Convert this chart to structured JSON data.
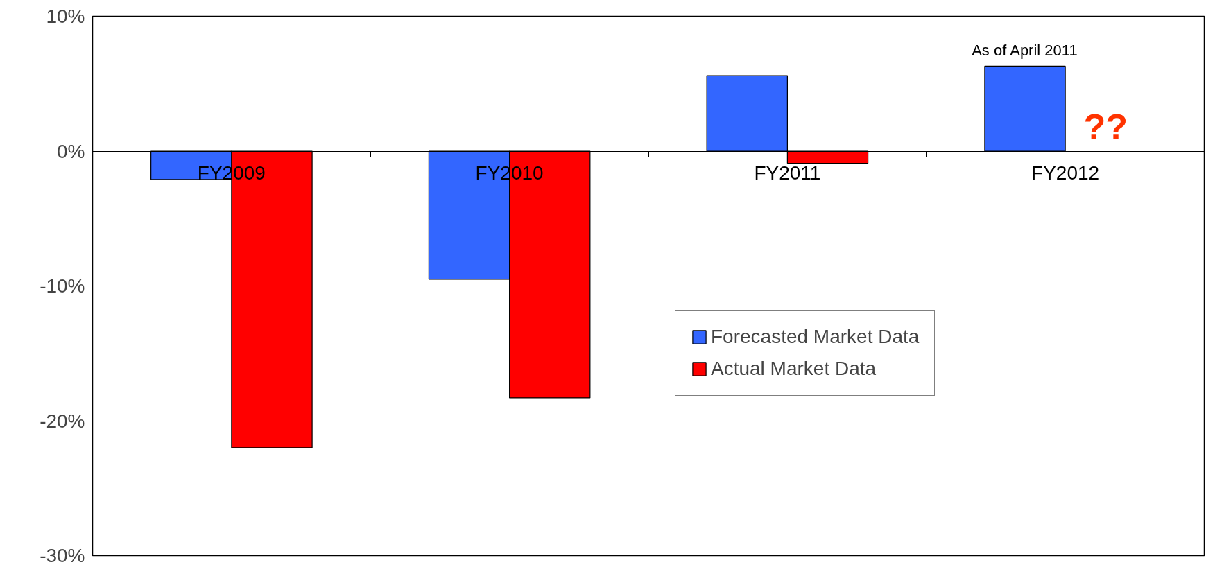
{
  "chart_data": {
    "type": "bar",
    "categories": [
      "FY2009",
      "FY2010",
      "FY2011",
      "FY2012"
    ],
    "series": [
      {
        "name": "Forecasted Market Data",
        "color": "#3366ff",
        "values": [
          -2.1,
          -9.5,
          5.6,
          6.3
        ]
      },
      {
        "name": "Actual Market Data",
        "color": "#ff0000",
        "values": [
          -22.0,
          -18.3,
          -0.9,
          null
        ]
      }
    ],
    "ylim": [
      -30,
      10
    ],
    "yticks": [
      {
        "value": -30,
        "label": "-30%"
      },
      {
        "value": -20,
        "label": "-20%"
      },
      {
        "value": -10,
        "label": "-10%"
      },
      {
        "value": 0,
        "label": "0%"
      },
      {
        "value": 10,
        "label": "10%"
      }
    ],
    "grid": "y",
    "legend": "bottom right",
    "annotations": [
      {
        "text": "As of April 2011",
        "x": "FY2012",
        "y": 6.3
      },
      "??"
    ]
  }
}
